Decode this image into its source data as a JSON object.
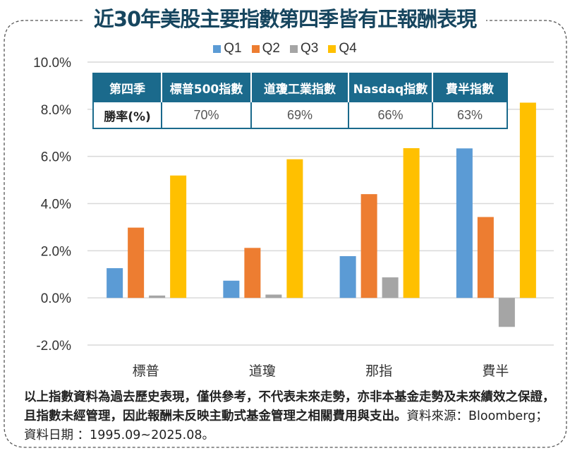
{
  "title": "近30年美股主要指數第四季皆有正報酬表現",
  "colors": {
    "title": "#17465f",
    "table_header": "#1b6a8c",
    "Q1": "#5b9bd5",
    "Q2": "#ed7d31",
    "Q3": "#a5a5a5",
    "Q4": "#ffc000",
    "grid": "#d9d9d9",
    "frame": "#555555"
  },
  "win_table": {
    "header": [
      "第四季",
      "標普500指數",
      "道瓊工業指數",
      "Nasdaq指數",
      "費半指數"
    ],
    "row_label": "勝率(%)",
    "values": [
      "70%",
      "69%",
      "66%",
      "63%"
    ]
  },
  "note": {
    "bold_text": "以上指數資料為過去歷史表現，僅供參考，不代表未來走勢，亦非本基金走勢及未來績效之保證，且指數未經管理，因此報酬未反映主動式基金管理之相關費用與支出。",
    "plain_text": "資料來源：Bloomberg；資料日期 ：1995.09~2025.08。"
  },
  "chart_data": {
    "type": "bar",
    "title": "近30年美股主要指數第四季皆有正報酬表現",
    "xlabel": "",
    "ylabel": "",
    "categories": [
      "標普",
      "道瓊",
      "那指",
      "費半"
    ],
    "series": [
      {
        "name": "Q1",
        "values": [
          1.26,
          0.73,
          1.77,
          6.34
        ]
      },
      {
        "name": "Q2",
        "values": [
          2.98,
          2.12,
          4.4,
          3.43
        ]
      },
      {
        "name": "Q3",
        "values": [
          0.1,
          0.14,
          0.87,
          -1.23
        ]
      },
      {
        "name": "Q4",
        "values": [
          5.19,
          5.88,
          6.35,
          8.28
        ]
      }
    ],
    "unit": "%",
    "ylim": [
      -2.0,
      10.0
    ],
    "yticks": [
      -2.0,
      0.0,
      2.0,
      4.0,
      6.0,
      8.0,
      10.0
    ],
    "ytick_labels": [
      "-2.0%",
      "0.0%",
      "2.0%",
      "4.0%",
      "6.0%",
      "8.0%",
      "10.0%"
    ],
    "grid": true,
    "legend": "top-center"
  }
}
